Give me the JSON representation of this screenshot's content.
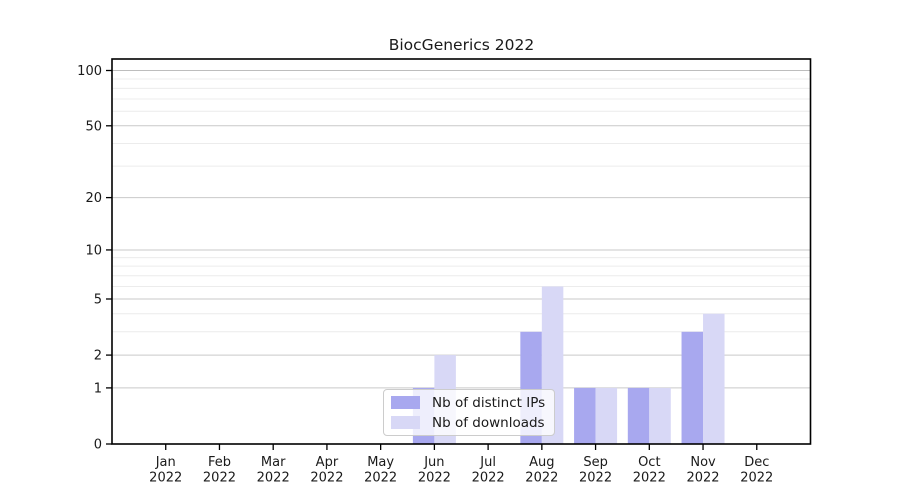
{
  "chart_data": {
    "type": "bar",
    "title": "BiocGenerics 2022",
    "categories": [
      "Jan",
      "Feb",
      "Mar",
      "Apr",
      "May",
      "Jun",
      "Jul",
      "Aug",
      "Sep",
      "Oct",
      "Nov",
      "Dec"
    ],
    "category_year": "2022",
    "series": [
      {
        "name": "Nb of distinct IPs",
        "color": "#a8a8ef",
        "values": [
          0,
          0,
          0,
          0,
          0,
          1,
          0,
          3,
          1,
          1,
          3,
          0
        ]
      },
      {
        "name": "Nb of downloads",
        "color": "#d8d8f6",
        "values": [
          0,
          0,
          0,
          0,
          0,
          2,
          0,
          6,
          1,
          1,
          4,
          0
        ]
      }
    ],
    "y_axis": {
      "scale": "log10(1+v)",
      "ticks": [
        0,
        1,
        2,
        5,
        10,
        20,
        50,
        100
      ],
      "minor_ticks": [
        3,
        4,
        6,
        7,
        8,
        9,
        30,
        40,
        60,
        70,
        80,
        90
      ],
      "top_value": 115
    },
    "legend": {
      "position": "inside-bottom-center",
      "entries": [
        "Nb of distinct IPs",
        "Nb of downloads"
      ]
    },
    "style": {
      "major_grid_color": "#c9c9c9",
      "hundred_grid_color": "#bdbdbd",
      "minor_grid_color": "#ececec",
      "axis_color": "#000000",
      "text_color": "#1a1a1a",
      "background": "#ffffff"
    }
  }
}
